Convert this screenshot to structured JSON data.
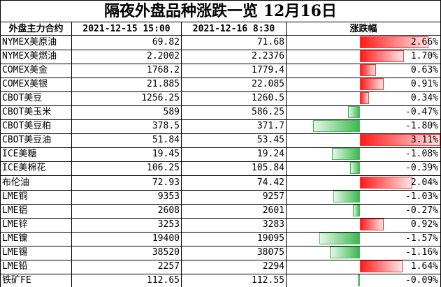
{
  "title": "隔夜外盘品种涨跌一览 12月16日",
  "table": {
    "header": [
      "外盘主力合约",
      "2021-12-15 15:00",
      "2021-12-16 8:30",
      "涨跌幅"
    ],
    "rows": [
      [
        "NYMEX美原油",
        "69.82",
        "71.68",
        {
          "value": 2.66,
          "label": "2.66%"
        }
      ],
      [
        "NYMEX美燃油",
        "2.2002",
        "2.2376",
        {
          "value": 1.7,
          "label": "1.70%"
        }
      ],
      [
        "COMEX美金",
        "1768.2",
        "1779.4",
        {
          "value": 0.63,
          "label": "0.63%"
        }
      ],
      [
        "COMEX美银",
        "21.885",
        "22.085",
        {
          "value": 0.91,
          "label": "0.91%"
        }
      ],
      [
        "CBOT美豆",
        "1256.25",
        "1260.5",
        {
          "value": 0.34,
          "label": "0.34%"
        }
      ],
      [
        "CBOT美玉米",
        "589",
        "586.25",
        {
          "value": -0.47,
          "label": "-0.47%"
        }
      ],
      [
        "CBOT美豆粕",
        "378.5",
        "371.7",
        {
          "value": -1.8,
          "label": "-1.80%"
        }
      ],
      [
        "CBOT美豆油",
        "51.84",
        "53.45",
        {
          "value": 3.11,
          "label": "3.11%"
        }
      ],
      [
        "ICE美糖",
        "19.45",
        "19.24",
        {
          "value": -1.08,
          "label": "-1.08%"
        }
      ],
      [
        "ICE美棉花",
        "106.25",
        "105.84",
        {
          "value": -0.39,
          "label": "-0.39%"
        }
      ],
      [
        "布伦油",
        "72.93",
        "74.42",
        {
          "value": 2.04,
          "label": "2.04%"
        }
      ],
      [
        "LME铜",
        "9353",
        "9257",
        {
          "value": -1.03,
          "label": "-1.03%"
        }
      ],
      [
        "LME铝",
        "2608",
        "2601",
        {
          "value": -0.27,
          "label": "-0.27%"
        }
      ],
      [
        "LME锌",
        "3253",
        "3283",
        {
          "value": 0.92,
          "label": "0.92%"
        }
      ],
      [
        "LME镍",
        "19400",
        "19095",
        {
          "value": -1.57,
          "label": "-1.57%"
        }
      ],
      [
        "LME锡",
        "38520",
        "38075",
        {
          "value": -1.16,
          "label": "-1.16%"
        }
      ],
      [
        "LME铅",
        "2257",
        "2294",
        {
          "value": 1.64,
          "label": "1.64%"
        }
      ],
      [
        "铁矿FE",
        "112.65",
        "112.55",
        {
          "value": -0.09,
          "label": "-0.09%"
        }
      ]
    ]
  }
}
